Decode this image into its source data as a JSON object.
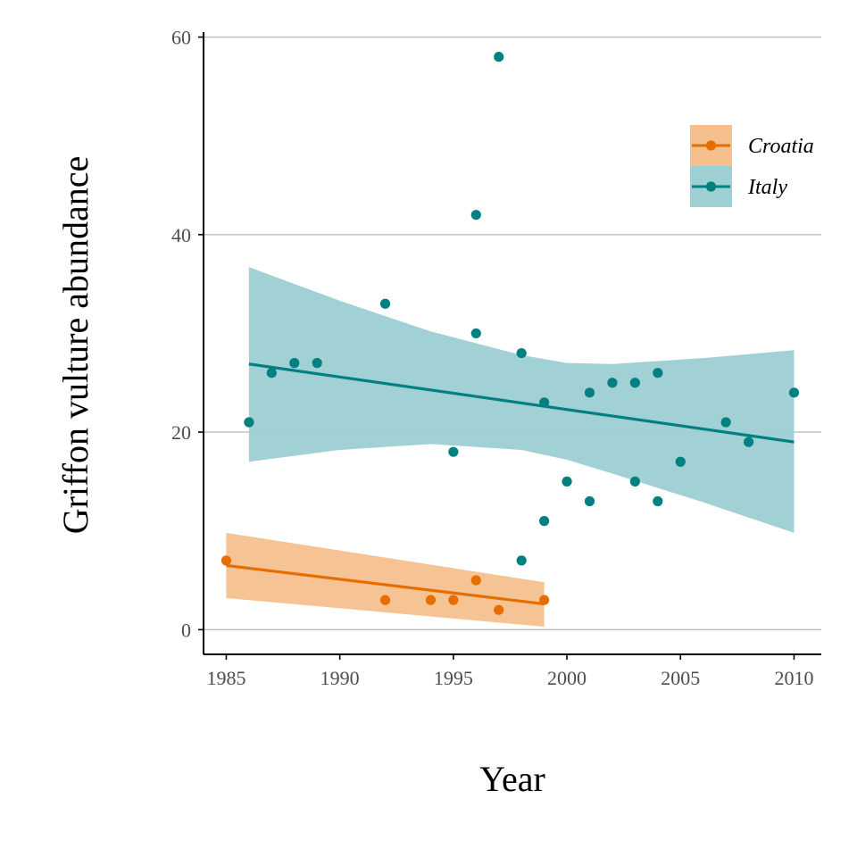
{
  "chart_data": {
    "type": "scatter",
    "title": "",
    "xlabel": "Year",
    "ylabel": "Griffon vulture abundance",
    "xlim": [
      1984,
      2011.2
    ],
    "ylim": [
      -2.5,
      60.5
    ],
    "xticks": [
      1985,
      1990,
      1995,
      2000,
      2005,
      2010
    ],
    "yticks": [
      0,
      20,
      40,
      60
    ],
    "grid": "horizontal",
    "legend_position": "top-right",
    "series": [
      {
        "name": "Croatia",
        "color": "#e66d00",
        "band_color": "#f5c08e",
        "points": [
          [
            1985,
            7
          ],
          [
            1992,
            3
          ],
          [
            1994,
            3
          ],
          [
            1995,
            3
          ],
          [
            1996,
            5
          ],
          [
            1997,
            2
          ],
          [
            1999,
            3
          ]
        ],
        "fit": {
          "x": [
            1985,
            1999
          ],
          "y": [
            6.5,
            2.6
          ]
        },
        "band": {
          "x": [
            1985,
            1999
          ],
          "lower": [
            3.2,
            0.3
          ],
          "upper": [
            9.8,
            4.8
          ]
        }
      },
      {
        "name": "Italy",
        "color": "#008080",
        "band_color": "#9dcfd3",
        "points": [
          [
            1986,
            21
          ],
          [
            1987,
            26
          ],
          [
            1988,
            27
          ],
          [
            1989,
            27
          ],
          [
            1992,
            33
          ],
          [
            1995,
            18
          ],
          [
            1996,
            42
          ],
          [
            1996,
            30
          ],
          [
            1997,
            58
          ],
          [
            1998,
            28
          ],
          [
            1998,
            7
          ],
          [
            1999,
            23
          ],
          [
            1999,
            11
          ],
          [
            2000,
            15
          ],
          [
            2001,
            24
          ],
          [
            2001,
            13
          ],
          [
            2002,
            25
          ],
          [
            2003,
            25
          ],
          [
            2003,
            15
          ],
          [
            2004,
            26
          ],
          [
            2004,
            13
          ],
          [
            2005,
            17
          ],
          [
            2007,
            21
          ],
          [
            2008,
            19
          ],
          [
            2010,
            24
          ]
        ],
        "fit": {
          "x": [
            1986,
            2010
          ],
          "y": [
            26.9,
            19.0
          ]
        },
        "band": {
          "x": [
            1986,
            1990,
            1994,
            1998,
            2000,
            2002,
            2006,
            2010
          ],
          "lower": [
            17.0,
            18.2,
            18.8,
            18.2,
            17.2,
            15.8,
            12.9,
            9.8
          ],
          "upper": [
            36.7,
            33.3,
            30.2,
            27.8,
            27.0,
            26.9,
            27.5,
            28.3
          ]
        }
      }
    ]
  }
}
